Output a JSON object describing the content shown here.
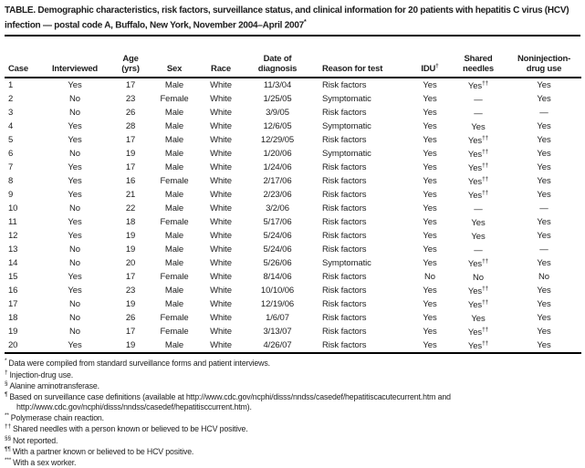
{
  "title": {
    "text": "TABLE. Demographic characteristics, risk factors, surveillance status, and clinical information for 20 patients with hepatitis C virus (HCV) infection — postal code A, Buffalo, New York, November 2004–April 2007",
    "marker": "*"
  },
  "table": {
    "columns": [
      {
        "top": "",
        "bottom": "Case"
      },
      {
        "top": "",
        "bottom": "Interviewed"
      },
      {
        "top": "Age",
        "bottom": "(yrs)"
      },
      {
        "top": "",
        "bottom": "Sex"
      },
      {
        "top": "",
        "bottom": "Race"
      },
      {
        "top": "Date of",
        "bottom": "diagnosis"
      },
      {
        "top": "",
        "bottom": "Reason for test"
      },
      {
        "top": "",
        "bottom": "IDU",
        "sup": "†"
      },
      {
        "top": "Shared",
        "bottom": "needles"
      },
      {
        "top": "Noninjection-",
        "bottom": "drug use"
      }
    ],
    "rows": [
      {
        "case": "1",
        "interviewed": "Yes",
        "age": "17",
        "sex": "Male",
        "race": "White",
        "date": "11/3/04",
        "reason": "Risk factors",
        "idu": "Yes",
        "shared": "Yes",
        "shared_sup": "††",
        "noninj": "Yes"
      },
      {
        "case": "2",
        "interviewed": "No",
        "age": "23",
        "sex": "Female",
        "race": "White",
        "date": "1/25/05",
        "reason": "Symptomatic",
        "idu": "Yes",
        "shared": "—",
        "shared_sup": "",
        "noninj": "Yes"
      },
      {
        "case": "3",
        "interviewed": "No",
        "age": "26",
        "sex": "Male",
        "race": "White",
        "date": "3/9/05",
        "reason": "Risk factors",
        "idu": "Yes",
        "shared": "—",
        "shared_sup": "",
        "noninj": "—"
      },
      {
        "case": "4",
        "interviewed": "Yes",
        "age": "28",
        "sex": "Male",
        "race": "White",
        "date": "12/6/05",
        "reason": "Symptomatic",
        "idu": "Yes",
        "shared": "Yes",
        "shared_sup": "",
        "noninj": "Yes"
      },
      {
        "case": "5",
        "interviewed": "Yes",
        "age": "17",
        "sex": "Male",
        "race": "White",
        "date": "12/29/05",
        "reason": "Risk factors",
        "idu": "Yes",
        "shared": "Yes",
        "shared_sup": "††",
        "noninj": "Yes"
      },
      {
        "case": "6",
        "interviewed": "No",
        "age": "19",
        "sex": "Male",
        "race": "White",
        "date": "1/20/06",
        "reason": "Symptomatic",
        "idu": "Yes",
        "shared": "Yes",
        "shared_sup": "††",
        "noninj": "Yes"
      },
      {
        "case": "7",
        "interviewed": "Yes",
        "age": "17",
        "sex": "Male",
        "race": "White",
        "date": "1/24/06",
        "reason": "Risk factors",
        "idu": "Yes",
        "shared": "Yes",
        "shared_sup": "††",
        "noninj": "Yes"
      },
      {
        "case": "8",
        "interviewed": "Yes",
        "age": "16",
        "sex": "Female",
        "race": "White",
        "date": "2/17/06",
        "reason": "Risk factors",
        "idu": "Yes",
        "shared": "Yes",
        "shared_sup": "††",
        "noninj": "Yes"
      },
      {
        "case": "9",
        "interviewed": "Yes",
        "age": "21",
        "sex": "Male",
        "race": "White",
        "date": "2/23/06",
        "reason": "Risk factors",
        "idu": "Yes",
        "shared": "Yes",
        "shared_sup": "††",
        "noninj": "Yes"
      },
      {
        "case": "10",
        "interviewed": "No",
        "age": "22",
        "sex": "Male",
        "race": "White",
        "date": "3/2/06",
        "reason": "Risk factors",
        "idu": "Yes",
        "shared": "—",
        "shared_sup": "",
        "noninj": "—"
      },
      {
        "case": "11",
        "interviewed": "Yes",
        "age": "18",
        "sex": "Female",
        "race": "White",
        "date": "5/17/06",
        "reason": "Risk factors",
        "idu": "Yes",
        "shared": "Yes",
        "shared_sup": "",
        "noninj": "Yes"
      },
      {
        "case": "12",
        "interviewed": "Yes",
        "age": "19",
        "sex": "Male",
        "race": "White",
        "date": "5/24/06",
        "reason": "Risk factors",
        "idu": "Yes",
        "shared": "Yes",
        "shared_sup": "",
        "noninj": "Yes"
      },
      {
        "case": "13",
        "interviewed": "No",
        "age": "19",
        "sex": "Male",
        "race": "White",
        "date": "5/24/06",
        "reason": "Risk factors",
        "idu": "Yes",
        "shared": "—",
        "shared_sup": "",
        "noninj": "—"
      },
      {
        "case": "14",
        "interviewed": "No",
        "age": "20",
        "sex": "Male",
        "race": "White",
        "date": "5/26/06",
        "reason": "Symptomatic",
        "idu": "Yes",
        "shared": "Yes",
        "shared_sup": "††",
        "noninj": "Yes"
      },
      {
        "case": "15",
        "interviewed": "Yes",
        "age": "17",
        "sex": "Female",
        "race": "White",
        "date": "8/14/06",
        "reason": "Risk factors",
        "idu": "No",
        "shared": "No",
        "shared_sup": "",
        "noninj": "No"
      },
      {
        "case": "16",
        "interviewed": "Yes",
        "age": "23",
        "sex": "Male",
        "race": "White",
        "date": "10/10/06",
        "reason": "Risk factors",
        "idu": "Yes",
        "shared": "Yes",
        "shared_sup": "††",
        "noninj": "Yes"
      },
      {
        "case": "17",
        "interviewed": "No",
        "age": "19",
        "sex": "Male",
        "race": "White",
        "date": "12/19/06",
        "reason": "Risk factors",
        "idu": "Yes",
        "shared": "Yes",
        "shared_sup": "††",
        "noninj": "Yes"
      },
      {
        "case": "18",
        "interviewed": "No",
        "age": "26",
        "sex": "Female",
        "race": "White",
        "date": "1/6/07",
        "reason": "Risk factors",
        "idu": "Yes",
        "shared": "Yes",
        "shared_sup": "",
        "noninj": "Yes"
      },
      {
        "case": "19",
        "interviewed": "No",
        "age": "17",
        "sex": "Female",
        "race": "White",
        "date": "3/13/07",
        "reason": "Risk factors",
        "idu": "Yes",
        "shared": "Yes",
        "shared_sup": "††",
        "noninj": "Yes"
      },
      {
        "case": "20",
        "interviewed": "Yes",
        "age": "19",
        "sex": "Male",
        "race": "White",
        "date": "4/26/07",
        "reason": "Risk factors",
        "idu": "Yes",
        "shared": "Yes",
        "shared_sup": "††",
        "noninj": "Yes"
      }
    ]
  },
  "footnotes": [
    {
      "mark": "*",
      "text": "Data were compiled from standard surveillance forms and patient interviews."
    },
    {
      "mark": "†",
      "text": "Injection-drug use."
    },
    {
      "mark": "§",
      "text": "Alanine aminotransferase."
    },
    {
      "mark": "¶",
      "text": "Based on surveillance case definitions (available at http://www.cdc.gov/ncphi/disss/nndss/casedef/hepatitiscacutecurrent.htm and http://www.cdc.gov/ncphi/disss/nndss/casedef/hepatitisccurrent.htm)."
    },
    {
      "mark": "**",
      "text": "Polymerase chain reaction."
    },
    {
      "mark": "††",
      "text": "Shared needles with a person known or believed to be HCV positive."
    },
    {
      "mark": "§§",
      "text": "Not reported."
    },
    {
      "mark": "¶¶",
      "text": "With a partner known or believed to be HCV positive."
    },
    {
      "mark": "***",
      "text": "With a sex worker."
    }
  ]
}
